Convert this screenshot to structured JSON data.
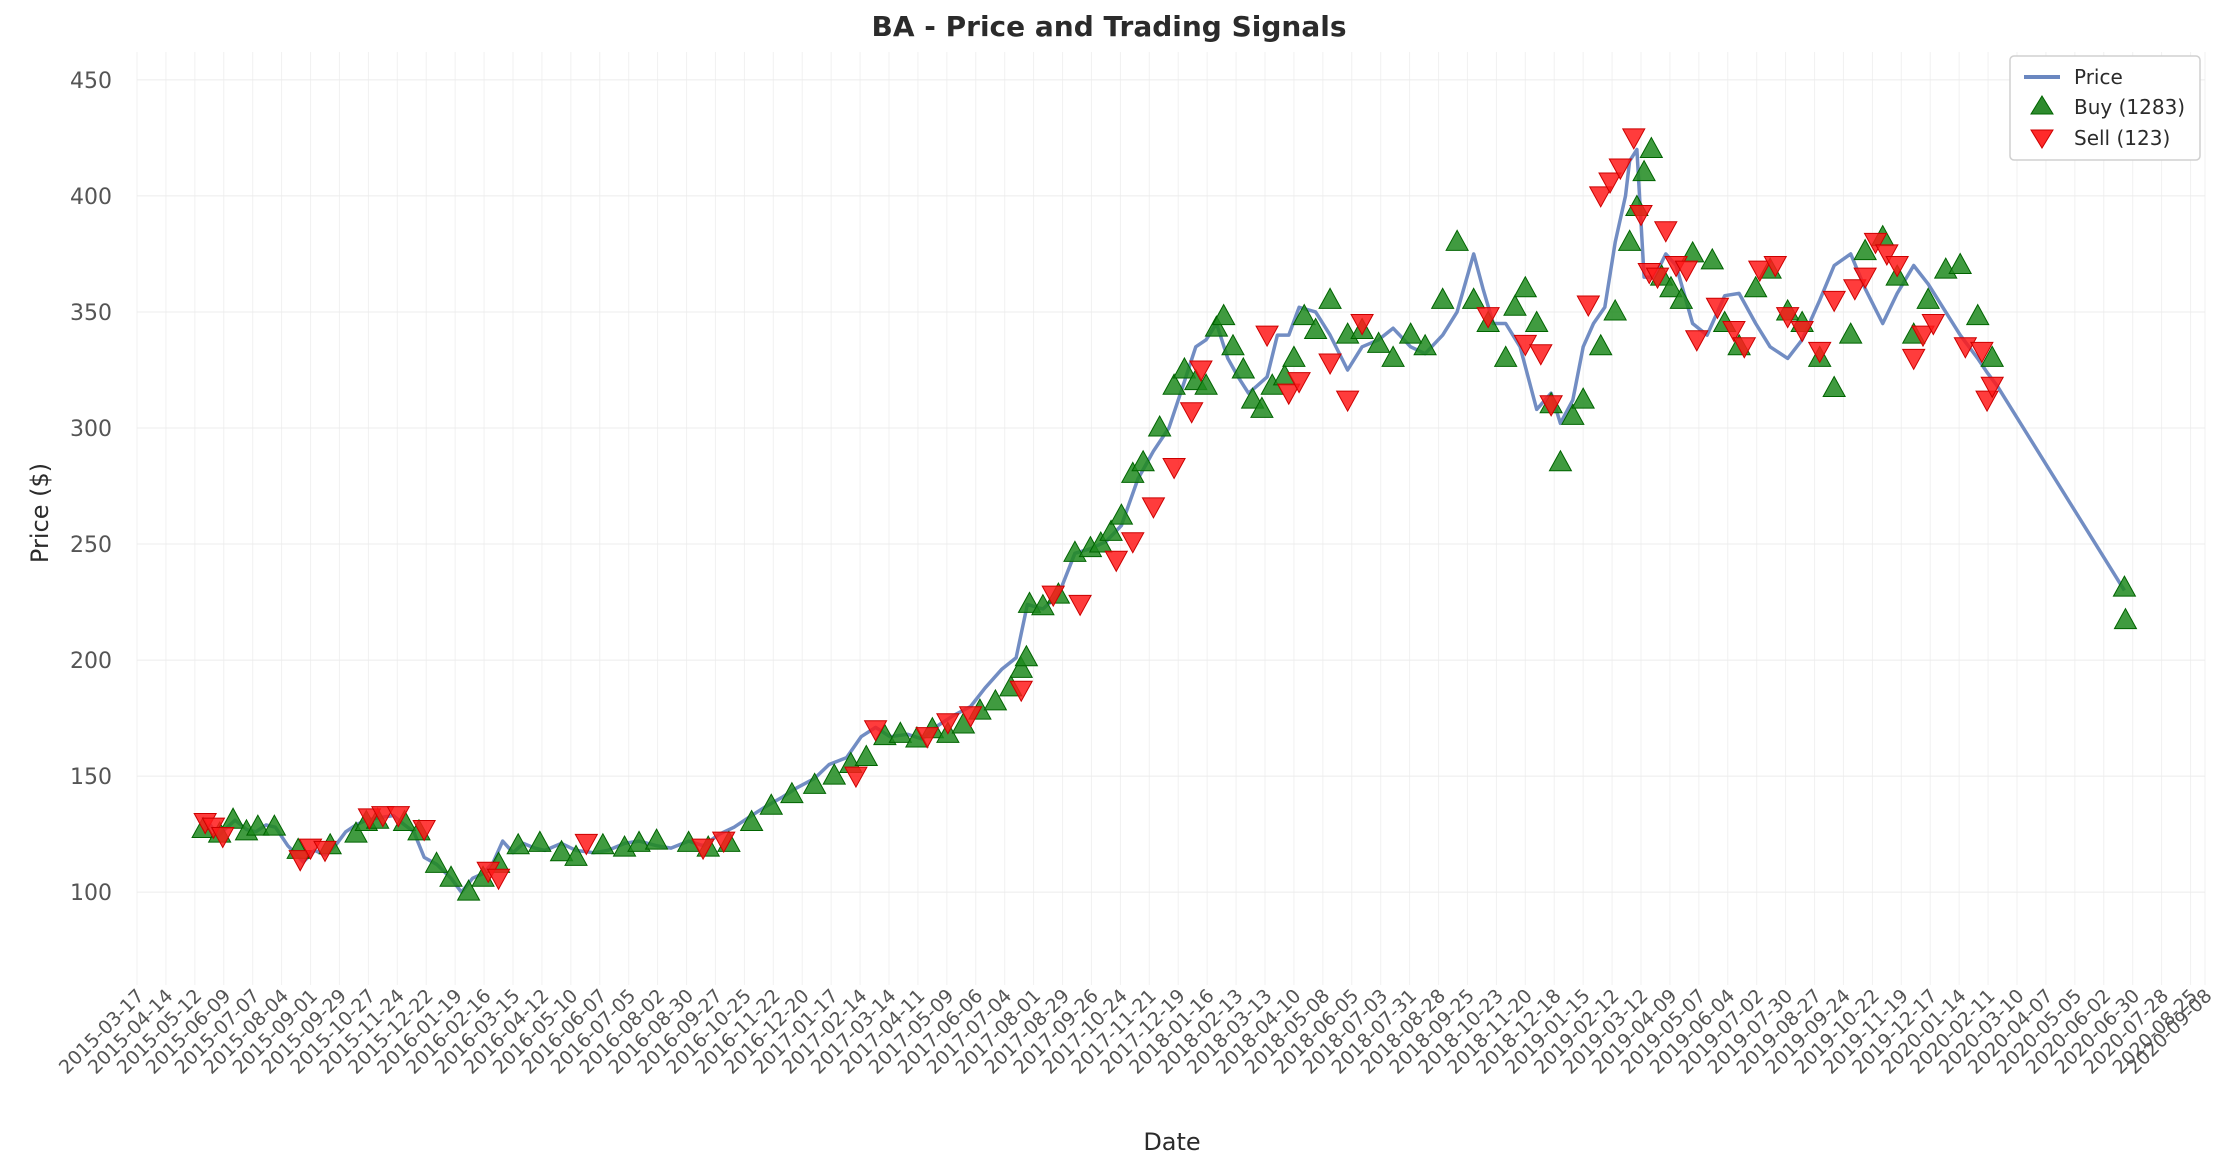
{
  "chart_data": {
    "type": "line",
    "title": "BA - Price and Trading Signals",
    "xlabel": "Date",
    "ylabel": "Price ($)",
    "ylim": [
      60,
      462
    ],
    "yticks": [
      100,
      150,
      200,
      250,
      300,
      350,
      400,
      450
    ],
    "xlim": [
      "2015-03-17",
      "2020-09-08"
    ],
    "xtick_labels": [
      "2015-03-17",
      "2015-04-14",
      "2015-05-12",
      "2015-06-09",
      "2015-07-07",
      "2015-08-04",
      "2015-09-01",
      "2015-09-29",
      "2015-10-27",
      "2015-11-24",
      "2015-12-22",
      "2016-01-19",
      "2016-02-16",
      "2016-03-15",
      "2016-04-12",
      "2016-05-10",
      "2016-06-07",
      "2016-07-05",
      "2016-08-02",
      "2016-08-30",
      "2016-09-27",
      "2016-10-25",
      "2016-11-22",
      "2016-12-20",
      "2017-01-17",
      "2017-02-14",
      "2017-03-14",
      "2017-04-11",
      "2017-05-09",
      "2017-06-06",
      "2017-07-04",
      "2017-08-01",
      "2017-08-29",
      "2017-09-26",
      "2017-10-24",
      "2017-11-21",
      "2017-12-19",
      "2018-01-16",
      "2018-02-13",
      "2018-03-13",
      "2018-04-10",
      "2018-05-08",
      "2018-06-05",
      "2018-07-03",
      "2018-07-31",
      "2018-08-28",
      "2018-09-25",
      "2018-10-23",
      "2018-11-20",
      "2018-12-18",
      "2019-01-15",
      "2019-02-12",
      "2019-03-12",
      "2019-04-09",
      "2019-05-07",
      "2019-06-04",
      "2019-07-02",
      "2019-07-30",
      "2019-08-27",
      "2019-09-24",
      "2019-10-22",
      "2019-11-19",
      "2019-12-17",
      "2020-01-14",
      "2020-02-11",
      "2020-03-10",
      "2020-04-07",
      "2020-05-05",
      "2020-06-02",
      "2020-06-30",
      "2020-07-28",
      "2020-08-25",
      "2020-09-08"
    ],
    "grid": true,
    "legend_position": "top-right",
    "series": [
      {
        "name": "Price",
        "kind": "line",
        "color": "#6a87c0",
        "x": [
          "2015-05-20",
          "2015-05-27",
          "2015-06-03",
          "2015-06-10",
          "2015-06-20",
          "2015-07-01",
          "2015-07-10",
          "2015-07-20",
          "2015-07-29",
          "2015-08-10",
          "2015-08-25",
          "2015-09-05",
          "2015-09-15",
          "2015-09-25",
          "2015-10-05",
          "2015-10-15",
          "2015-10-25",
          "2015-11-05",
          "2015-11-20",
          "2015-12-01",
          "2015-12-10",
          "2015-12-20",
          "2016-01-01",
          "2016-01-15",
          "2016-01-25",
          "2016-02-05",
          "2016-02-15",
          "2016-02-25",
          "2016-03-05",
          "2016-03-15",
          "2016-03-25",
          "2016-04-05",
          "2016-04-15",
          "2016-05-01",
          "2016-05-15",
          "2016-06-01",
          "2016-06-15",
          "2016-07-01",
          "2016-07-15",
          "2016-08-01",
          "2016-08-15",
          "2016-09-01",
          "2016-09-15",
          "2016-10-01",
          "2016-10-15",
          "2016-11-01",
          "2016-11-15",
          "2016-12-01",
          "2016-12-15",
          "2017-01-01",
          "2017-01-15",
          "2017-02-01",
          "2017-02-15",
          "2017-03-01",
          "2017-03-15",
          "2017-04-01",
          "2017-04-15",
          "2017-05-01",
          "2017-05-15",
          "2017-06-01",
          "2017-06-15",
          "2017-07-01",
          "2017-07-15",
          "2017-07-26",
          "2017-08-10",
          "2017-08-25",
          "2017-09-10",
          "2017-09-25",
          "2017-10-10",
          "2017-10-25",
          "2017-11-10",
          "2017-11-25",
          "2017-12-10",
          "2017-12-25",
          "2018-01-05",
          "2018-01-15",
          "2018-01-25",
          "2018-02-05",
          "2018-02-15",
          "2018-02-25",
          "2018-03-05",
          "2018-03-15",
          "2018-03-25",
          "2018-04-05",
          "2018-04-15",
          "2018-05-01",
          "2018-05-15",
          "2018-06-01",
          "2018-06-15",
          "2018-07-01",
          "2018-07-15",
          "2018-08-01",
          "2018-08-15",
          "2018-09-01",
          "2018-09-15",
          "2018-10-01",
          "2018-10-10",
          "2018-10-20",
          "2018-11-01",
          "2018-11-15",
          "2018-12-01",
          "2018-12-15",
          "2018-12-24",
          "2019-01-05",
          "2019-01-15",
          "2019-01-25",
          "2019-02-05",
          "2019-02-15",
          "2019-02-25",
          "2019-03-01",
          "2019-03-08",
          "2019-03-15",
          "2019-03-25",
          "2019-04-05",
          "2019-04-15",
          "2019-05-01",
          "2019-05-15",
          "2019-06-01",
          "2019-06-15",
          "2019-07-01",
          "2019-07-15",
          "2019-08-01",
          "2019-08-15",
          "2019-09-01",
          "2019-09-15",
          "2019-10-01",
          "2019-10-15",
          "2019-11-01",
          "2019-11-15",
          "2019-12-01",
          "2019-12-15",
          "2020-01-01",
          "2020-01-15",
          "2020-02-01",
          "2020-02-10",
          "2020-02-20",
          "2020-06-22"
        ],
        "y": [
          127,
          129,
          124,
          127,
          131,
          127,
          126,
          129,
          128,
          120,
          113,
          118,
          116,
          120,
          126,
          129,
          131,
          132,
          133,
          129,
          126,
          115,
          112,
          106,
          100,
          106,
          108,
          113,
          122,
          117,
          121,
          119,
          118,
          121,
          118,
          117,
          118,
          121,
          122,
          120,
          119,
          122,
          120,
          125,
          128,
          133,
          137,
          141,
          145,
          149,
          155,
          158,
          167,
          171,
          167,
          168,
          166,
          172,
          176,
          180,
          188,
          196,
          201,
          224,
          222,
          228,
          246,
          248,
          251,
          258,
          278,
          290,
          300,
          320,
          335,
          338,
          345,
          330,
          322,
          315,
          318,
          322,
          340,
          340,
          352,
          350,
          340,
          325,
          335,
          338,
          343,
          335,
          332,
          340,
          350,
          375,
          360,
          345,
          345,
          335,
          308,
          315,
          302,
          312,
          335,
          345,
          352,
          380,
          400,
          415,
          420,
          365,
          365,
          375,
          370,
          345,
          340,
          357,
          358,
          345,
          335,
          330,
          338,
          355,
          370,
          375,
          360,
          345,
          358,
          370,
          362,
          350,
          340,
          330,
          324,
          318,
          230
        ]
      },
      {
        "name": "Buy (1283)",
        "kind": "markers",
        "marker": "triangle-up",
        "color": "#008000",
        "x": [
          "2015-05-20",
          "2015-06-05",
          "2015-06-18",
          "2015-07-01",
          "2015-07-12",
          "2015-07-28",
          "2015-08-20",
          "2015-09-20",
          "2015-10-15",
          "2015-10-25",
          "2015-11-05",
          "2015-12-01",
          "2015-12-15",
          "2016-01-01",
          "2016-01-15",
          "2016-02-01",
          "2016-02-15",
          "2016-03-01",
          "2016-03-20",
          "2016-04-10",
          "2016-05-01",
          "2016-05-15",
          "2016-06-10",
          "2016-07-01",
          "2016-07-15",
          "2016-08-01",
          "2016-09-01",
          "2016-09-20",
          "2016-10-10",
          "2016-11-01",
          "2016-11-20",
          "2016-12-10",
          "2017-01-01",
          "2017-01-20",
          "2017-02-05",
          "2017-02-20",
          "2017-03-10",
          "2017-03-25",
          "2017-04-10",
          "2017-04-25",
          "2017-05-10",
          "2017-05-25",
          "2017-06-10",
          "2017-06-25",
          "2017-07-10",
          "2017-07-20",
          "2017-07-25",
          "2017-07-28",
          "2017-08-10",
          "2017-08-25",
          "2017-09-10",
          "2017-09-25",
          "2017-10-05",
          "2017-10-15",
          "2017-10-25",
          "2017-11-05",
          "2017-11-15",
          "2017-12-01",
          "2017-12-15",
          "2017-12-25",
          "2018-01-05",
          "2018-01-15",
          "2018-01-25",
          "2018-02-01",
          "2018-02-10",
          "2018-02-20",
          "2018-03-01",
          "2018-03-10",
          "2018-03-20",
          "2018-04-01",
          "2018-04-10",
          "2018-04-20",
          "2018-05-01",
          "2018-05-15",
          "2018-06-01",
          "2018-06-15",
          "2018-07-01",
          "2018-07-15",
          "2018-08-01",
          "2018-08-15",
          "2018-09-01",
          "2018-09-15",
          "2018-10-01",
          "2018-10-15",
          "2018-11-01",
          "2018-11-10",
          "2018-11-20",
          "2018-12-01",
          "2018-12-15",
          "2018-12-24",
          "2019-01-05",
          "2019-01-15",
          "2019-02-01",
          "2019-02-15",
          "2019-03-01",
          "2019-03-08",
          "2019-03-15",
          "2019-03-22",
          "2019-04-01",
          "2019-04-10",
          "2019-04-20",
          "2019-05-01",
          "2019-05-20",
          "2019-06-01",
          "2019-06-15",
          "2019-07-01",
          "2019-07-15",
          "2019-08-01",
          "2019-08-15",
          "2019-09-01",
          "2019-09-15",
          "2019-10-01",
          "2019-10-15",
          "2019-11-01",
          "2019-11-15",
          "2019-12-01",
          "2019-12-15",
          "2020-01-01",
          "2020-01-15",
          "2020-02-01",
          "2020-02-15",
          "2020-06-22",
          "2020-06-23"
        ],
        "y": [
          127,
          125,
          131,
          126,
          128,
          128,
          118,
          120,
          125,
          130,
          131,
          130,
          126,
          112,
          106,
          100,
          106,
          112,
          120,
          121,
          117,
          115,
          120,
          119,
          121,
          122,
          121,
          119,
          121,
          130,
          137,
          142,
          146,
          150,
          155,
          158,
          167,
          168,
          166,
          170,
          168,
          172,
          178,
          182,
          188,
          196,
          201,
          224,
          223,
          228,
          246,
          248,
          250,
          255,
          262,
          280,
          285,
          300,
          318,
          325,
          320,
          318,
          343,
          348,
          335,
          325,
          312,
          308,
          318,
          322,
          330,
          348,
          342,
          355,
          340,
          342,
          336,
          330,
          340,
          335,
          355,
          380,
          355,
          345,
          330,
          352,
          360,
          345,
          310,
          285,
          305,
          312,
          335,
          350,
          380,
          395,
          410,
          420,
          365,
          360,
          355,
          375,
          372,
          345,
          335,
          360,
          368,
          350,
          345,
          330,
          317,
          340,
          376,
          382,
          365,
          340,
          355,
          368,
          370,
          348,
          330,
          231,
          217
        ]
      },
      {
        "name": "Sell (123)",
        "kind": "markers",
        "marker": "triangle-down",
        "color": "#ff0000",
        "x": [
          "2015-05-22",
          "2015-05-30",
          "2015-06-08",
          "2015-08-22",
          "2015-09-01",
          "2015-09-15",
          "2015-10-28",
          "2015-11-10",
          "2015-11-25",
          "2015-12-20",
          "2016-02-20",
          "2016-03-01",
          "2016-05-25",
          "2016-09-15",
          "2016-10-05",
          "2017-02-10",
          "2017-03-01",
          "2017-04-20",
          "2017-05-10",
          "2017-06-01",
          "2017-07-20",
          "2017-08-20",
          "2017-09-15",
          "2017-10-20",
          "2017-11-05",
          "2017-11-25",
          "2017-12-15",
          "2018-01-01",
          "2018-01-10",
          "2018-03-15",
          "2018-04-05",
          "2018-04-15",
          "2018-05-15",
          "2018-06-01",
          "2018-06-15",
          "2018-10-15",
          "2018-11-20",
          "2018-12-05",
          "2018-12-15",
          "2019-01-20",
          "2019-02-01",
          "2019-02-10",
          "2019-02-20",
          "2019-03-05",
          "2019-03-12",
          "2019-03-20",
          "2019-03-28",
          "2019-04-05",
          "2019-04-15",
          "2019-04-25",
          "2019-05-05",
          "2019-05-25",
          "2019-06-10",
          "2019-06-20",
          "2019-07-05",
          "2019-07-20",
          "2019-08-01",
          "2019-08-15",
          "2019-09-01",
          "2019-09-15",
          "2019-10-05",
          "2019-10-15",
          "2019-10-25",
          "2019-11-05",
          "2019-11-15",
          "2019-12-01",
          "2019-12-10",
          "2019-12-20",
          "2020-01-20",
          "2020-02-05",
          "2020-02-10",
          "2020-02-15"
        ],
        "y": [
          130,
          128,
          124,
          114,
          119,
          118,
          132,
          133,
          133,
          127,
          109,
          106,
          121,
          119,
          122,
          150,
          170,
          167,
          173,
          176,
          187,
          228,
          224,
          243,
          251,
          266,
          283,
          307,
          325,
          340,
          315,
          320,
          328,
          312,
          345,
          348,
          336,
          332,
          310,
          353,
          400,
          406,
          412,
          425,
          392,
          367,
          365,
          385,
          370,
          368,
          338,
          352,
          342,
          335,
          368,
          370,
          348,
          342,
          333,
          355,
          360,
          365,
          380,
          375,
          370,
          330,
          340,
          345,
          335,
          333,
          312,
          318
        ]
      }
    ]
  }
}
